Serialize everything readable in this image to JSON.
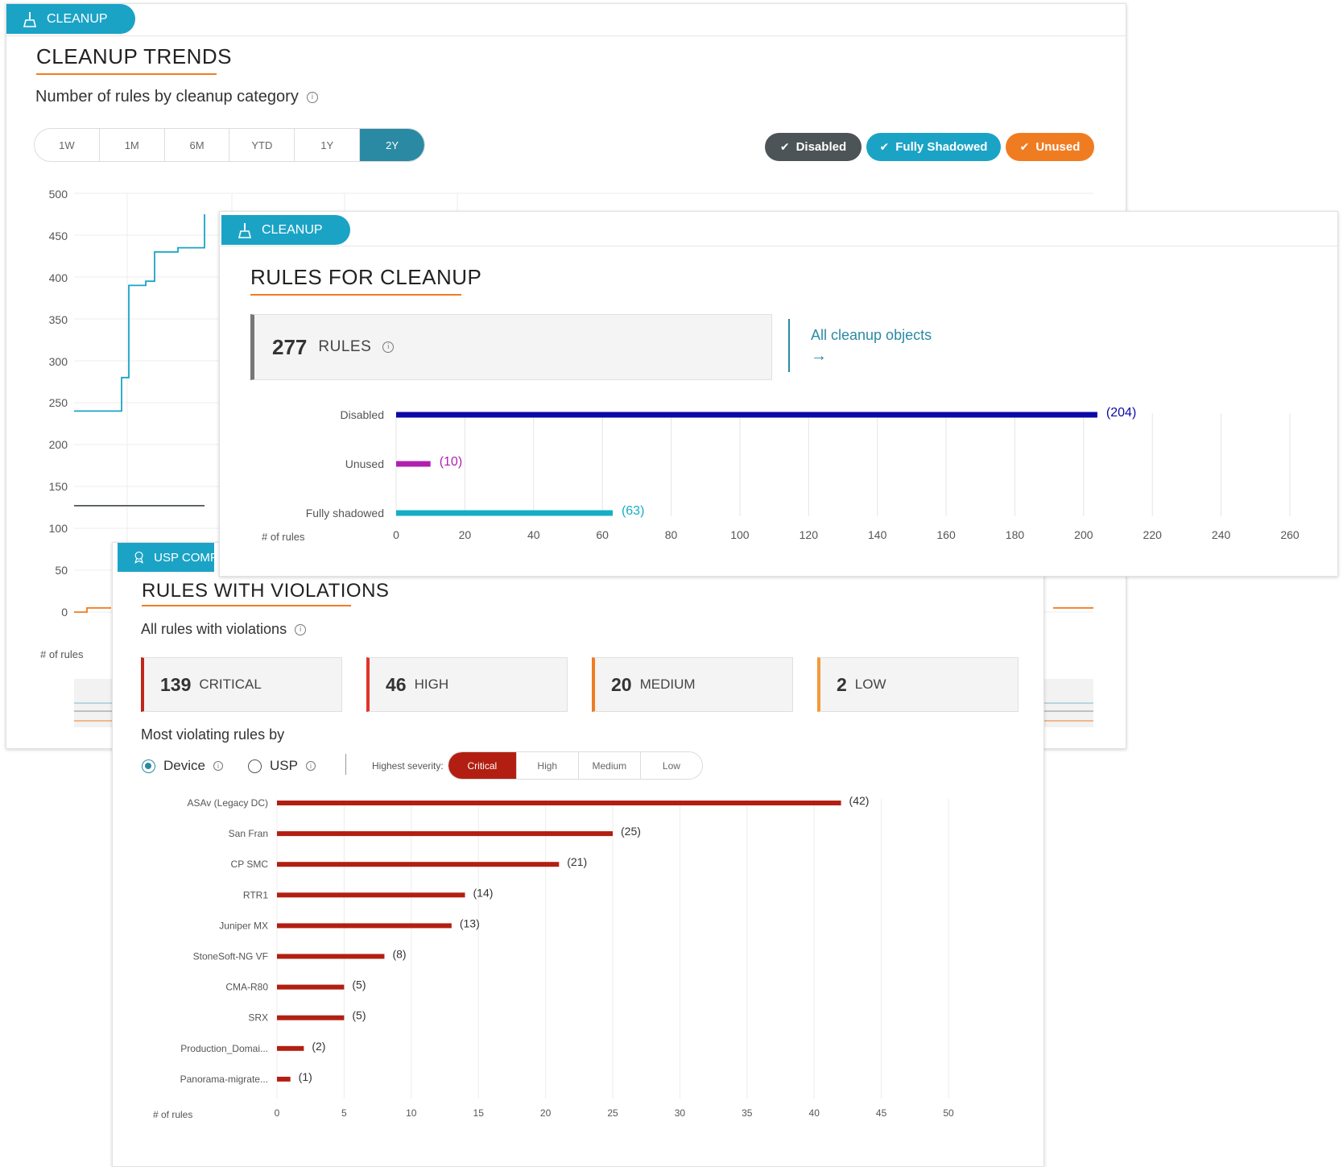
{
  "trends": {
    "tag_label": "CLEANUP",
    "title": "CLEANUP TRENDS",
    "subtitle": "Number of rules by cleanup category",
    "ranges": [
      "1W",
      "1M",
      "6M",
      "YTD",
      "1Y",
      "2Y"
    ],
    "active_range": "2Y",
    "filters": [
      {
        "label": "Disabled",
        "color": "#4d5458"
      },
      {
        "label": "Fully Shadowed",
        "color": "#1ba3c6"
      },
      {
        "label": "Unused",
        "color": "#f07c22"
      }
    ],
    "y_ticks": [
      "500",
      "450",
      "400",
      "350",
      "300",
      "250",
      "200",
      "150",
      "100",
      "50",
      "0"
    ],
    "y_axis_label": "# of rules",
    "chart_data": {
      "type": "line",
      "ylim": [
        0,
        500
      ],
      "ylabel": "# of rules",
      "series": [
        {
          "name": "Disabled",
          "color": "#4d5458",
          "partial_values": [
            127,
            127,
            127
          ]
        },
        {
          "name": "Fully Shadowed",
          "color": "#1ba3c6",
          "partial_values": [
            240,
            240,
            280,
            390,
            395,
            430,
            435,
            435,
            475
          ]
        },
        {
          "name": "Unused",
          "color": "#f07c22",
          "partial_values": [
            0,
            5,
            5
          ]
        }
      ]
    }
  },
  "cleanup": {
    "tag_label": "CLEANUP",
    "title": "RULES FOR CLEANUP",
    "total_count": "277",
    "total_label": "RULES",
    "link_text": "All cleanup objects",
    "link_arrow": "→",
    "x_axis_label": "# of rules",
    "x_ticks": [
      "0",
      "20",
      "40",
      "60",
      "80",
      "100",
      "120",
      "140",
      "160",
      "180",
      "200",
      "220",
      "240",
      "260"
    ],
    "chart_data": {
      "type": "bar",
      "orientation": "horizontal",
      "categories": [
        "Disabled",
        "Unused",
        "Fully shadowed"
      ],
      "values": [
        204,
        10,
        63
      ],
      "value_labels": [
        "(204)",
        "(10)",
        "(63)"
      ],
      "colors": [
        "#0a0aa8",
        "#b020b0",
        "#14aec6"
      ],
      "xlabel": "# of rules",
      "xlim": [
        0,
        260
      ]
    }
  },
  "violations": {
    "tag_label": "USP COMPLIA",
    "title": "RULES WITH VIOLATIONS",
    "subtitle": "All rules with violations",
    "severities": [
      {
        "count": "139",
        "label": "CRITICAL",
        "color": "#c0261b"
      },
      {
        "count": "46",
        "label": "HIGH",
        "color": "#e0342a"
      },
      {
        "count": "20",
        "label": "MEDIUM",
        "color": "#f07c22"
      },
      {
        "count": "2",
        "label": "LOW",
        "color": "#f39a3a"
      }
    ],
    "most_violating_label": "Most violating rules by",
    "radio_device": "Device",
    "radio_usp": "USP",
    "highest_severity_label": "Highest severity:",
    "severity_filters": [
      "Critical",
      "High",
      "Medium",
      "Low"
    ],
    "active_severity": "Critical",
    "x_axis_label": "# of rules",
    "x_ticks": [
      "0",
      "5",
      "10",
      "15",
      "20",
      "25",
      "30",
      "35",
      "40",
      "45",
      "50"
    ],
    "chart_data": {
      "type": "bar",
      "orientation": "horizontal",
      "categories": [
        "ASAv (Legacy DC)",
        "San Fran",
        "CP SMC",
        "RTR1",
        "Juniper MX",
        "StoneSoft-NG VF",
        "CMA-R80",
        "SRX",
        "Production_Domai...",
        "Panorama-migrate..."
      ],
      "values": [
        42,
        25,
        21,
        14,
        13,
        8,
        5,
        5,
        2,
        1
      ],
      "value_labels": [
        "(42)",
        "(25)",
        "(21)",
        "(14)",
        "(13)",
        "(8)",
        "(5)",
        "(5)",
        "(2)",
        "(1)"
      ],
      "color": "#b21f12",
      "xlabel": "# of rules",
      "xlim": [
        0,
        50
      ]
    }
  }
}
